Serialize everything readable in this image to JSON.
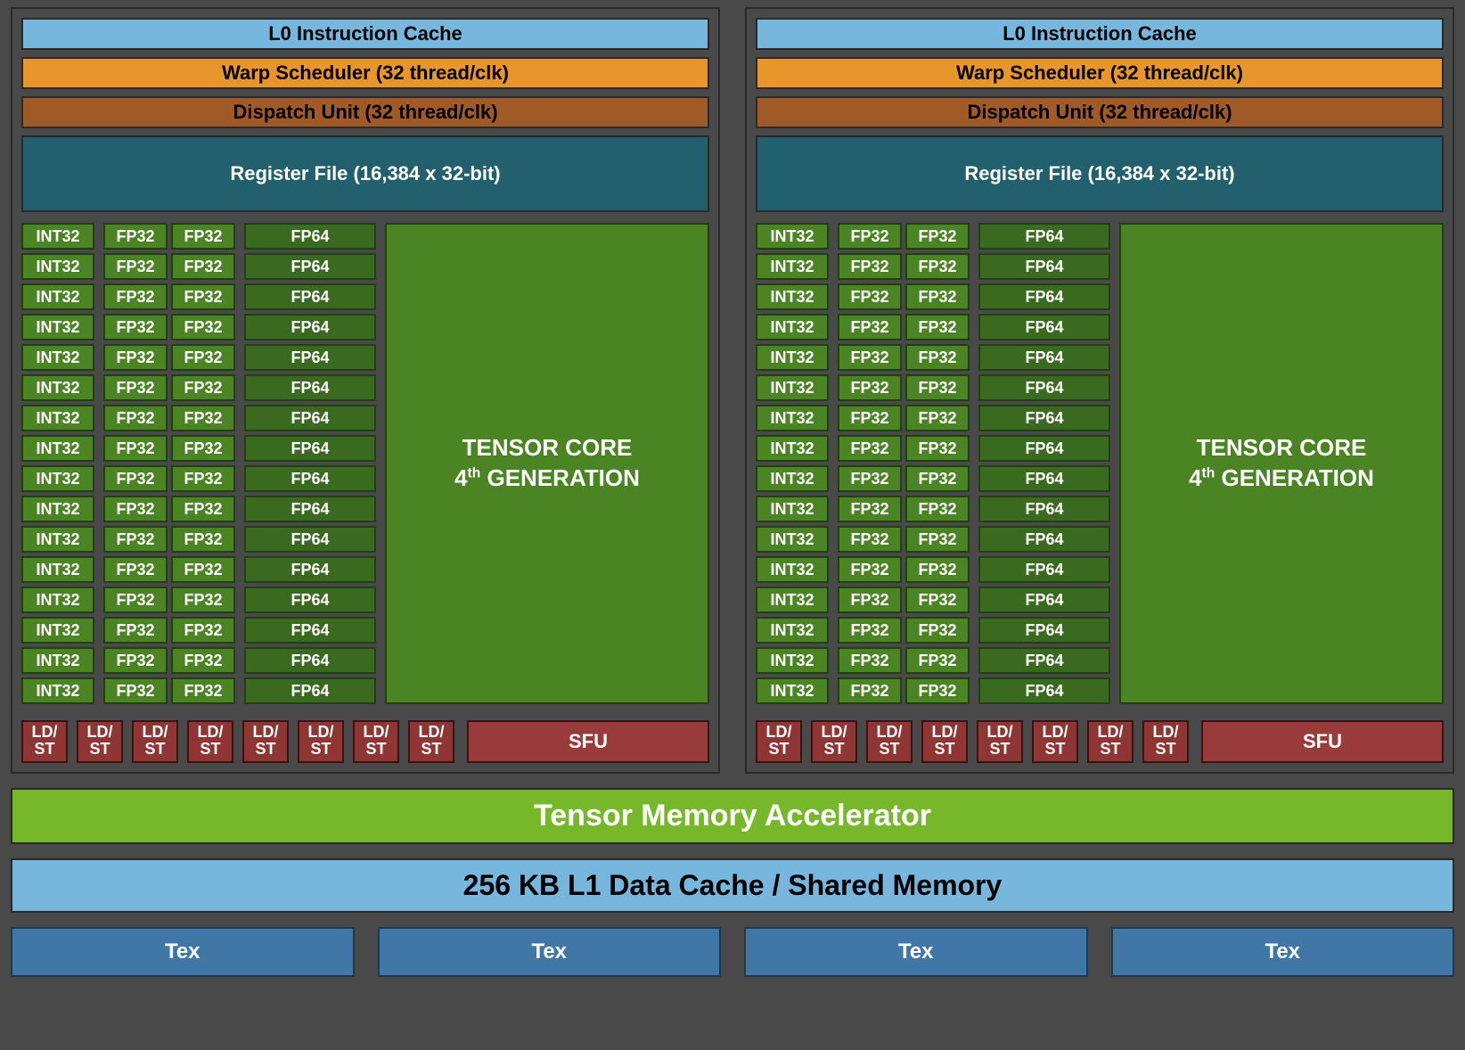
{
  "type": "gpu-sm-block-diagram",
  "colors": {
    "page_bg": "#49494a",
    "border_dark": "#2a2a2a",
    "l0_bg": "#77b6dd",
    "l0_fg": "#000000",
    "warp_bg": "#e8962b",
    "warp_fg": "#000000",
    "dispatch_bg": "#a05a28",
    "dispatch_fg": "#000000",
    "regfile_bg": "#21606c",
    "regfile_fg": "#ffffff",
    "unit_bg": "#4b8423",
    "unit_border": "#234012",
    "unit_fg": "#ffffff",
    "unit_dark_bg": "#3a6a1f",
    "ldst_bg": "#8f3634",
    "ldst_border": "#3a1414",
    "ldst_fg": "#ffffff",
    "sfu_bg": "#9a3b3b",
    "tma_bg": "#76b82a",
    "tma_fg": "#ffffff",
    "l1_bg": "#77b6dd",
    "l1_fg": "#000000",
    "tex_bg": "#4177a6",
    "tex_border": "#1e3a52",
    "tex_fg": "#ffffff"
  },
  "partition_count": 2,
  "partition": {
    "l0_label": "L0 Instruction Cache",
    "warp_label": "Warp Scheduler (32 thread/clk)",
    "dispatch_label": "Dispatch Unit (32 thread/clk)",
    "regfile_label": "Register File (16,384 x 32-bit)",
    "int32_label": "INT32",
    "int32_count": 16,
    "fp32_label": "FP32",
    "fp32_pair_count": 16,
    "fp64_label": "FP64",
    "fp64_count": 16,
    "tensor_line1": "TENSOR CORE",
    "tensor_line2_pre": "4",
    "tensor_line2_sup": "th",
    "tensor_line2_post": " GENERATION",
    "ldst_label_top": "LD/",
    "ldst_label_bot": "ST",
    "ldst_count": 8,
    "sfu_label": "SFU"
  },
  "tma_label": "Tensor Memory Accelerator",
  "l1_label": "256 KB L1 Data Cache / Shared Memory",
  "tex_label": "Tex",
  "tex_count": 4
}
